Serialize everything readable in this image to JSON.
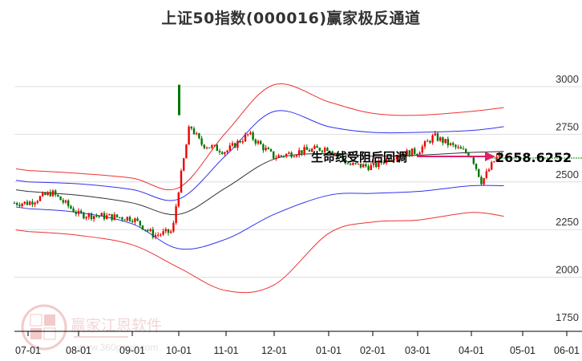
{
  "header": {
    "title": "上证50指数(000016)赢家极反通道"
  },
  "watermark": {
    "brand": "赢家江恩软件",
    "url": "www.360gann.com",
    "logo_chars": [
      "江",
      "赢",
      "恩",
      "家"
    ]
  },
  "annotation": {
    "text": "生命线受阻后回调",
    "price_label": "2658.6252"
  },
  "colors": {
    "up_candle": "#ee0000",
    "down_candle": "#007700",
    "outer_band": "#ee3333",
    "inner_band": "#3333ee",
    "life_line": "#333333",
    "arrow": "#e0206a",
    "price_line": "#008800",
    "grid": "#dddddd"
  },
  "chart_data": {
    "type": "candlestick",
    "title": "上证50指数(000016)赢家极反通道",
    "xlabel": "",
    "ylabel": "",
    "ylim": [
      1750,
      3100
    ],
    "y_ticks": [
      "3000",
      "2750",
      "2500",
      "2250",
      "2000",
      "1750"
    ],
    "x_ticks": [
      "07-01",
      "08-01",
      "09-01",
      "10-01",
      "11-01",
      "12-01",
      "01-01",
      "02-01",
      "03-01",
      "04-01",
      "05-01",
      "06-01"
    ],
    "grid": true,
    "legend": "none",
    "current_price": 2658.6252,
    "annotation": "生命线受阻后回调",
    "series": [
      {
        "name": "outer_upper_band (red)",
        "x": [
          "07-01",
          "08-01",
          "09-01",
          "10-01",
          "11-01",
          "12-01",
          "01-01",
          "02-01",
          "03-01",
          "04-01",
          "04-20"
        ],
        "values": [
          2560,
          2545,
          2520,
          2470,
          2760,
          3010,
          2920,
          2860,
          2850,
          2870,
          2890
        ]
      },
      {
        "name": "inner_upper_band (blue)",
        "x": [
          "07-01",
          "08-01",
          "09-01",
          "10-01",
          "11-01",
          "12-01",
          "01-01",
          "02-01",
          "03-01",
          "04-01",
          "04-20"
        ],
        "values": [
          2500,
          2490,
          2460,
          2410,
          2640,
          2870,
          2790,
          2760,
          2760,
          2770,
          2790
        ]
      },
      {
        "name": "life_line (black)",
        "x": [
          "07-01",
          "08-01",
          "09-01",
          "10-01",
          "11-01",
          "12-01",
          "01-01",
          "02-01",
          "03-01",
          "04-01",
          "04-20"
        ],
        "values": [
          2450,
          2430,
          2390,
          2330,
          2470,
          2620,
          2650,
          2635,
          2640,
          2655,
          2660
        ]
      },
      {
        "name": "inner_lower_band (blue)",
        "x": [
          "07-01",
          "08-01",
          "09-01",
          "10-01",
          "11-01",
          "12-01",
          "01-01",
          "02-01",
          "03-01",
          "04-01",
          "04-20"
        ],
        "values": [
          2360,
          2340,
          2280,
          2150,
          2200,
          2330,
          2430,
          2440,
          2450,
          2480,
          2480
        ]
      },
      {
        "name": "outer_lower_band (red)",
        "x": [
          "07-01",
          "08-01",
          "09-01",
          "10-01",
          "11-01",
          "12-01",
          "01-01",
          "02-01",
          "03-01",
          "04-01",
          "04-20"
        ],
        "values": [
          2240,
          2220,
          2170,
          2050,
          1930,
          1960,
          2230,
          2290,
          2300,
          2340,
          2320
        ]
      },
      {
        "name": "close (approx)",
        "x": [
          "07-01",
          "07-15",
          "08-01",
          "08-15",
          "09-01",
          "09-15",
          "09-27",
          "09-30",
          "10-08",
          "10-15",
          "11-01",
          "11-15",
          "12-01",
          "12-15",
          "01-01",
          "01-15",
          "02-01",
          "02-15",
          "03-01",
          "03-10",
          "03-20",
          "04-01",
          "04-07",
          "04-15",
          "04-20"
        ],
        "values": [
          2390,
          2445,
          2330,
          2320,
          2310,
          2220,
          2240,
          2420,
          2800,
          2700,
          2660,
          2750,
          2630,
          2660,
          2680,
          2590,
          2580,
          2640,
          2660,
          2740,
          2690,
          2640,
          2500,
          2620,
          2658.63
        ]
      }
    ]
  }
}
